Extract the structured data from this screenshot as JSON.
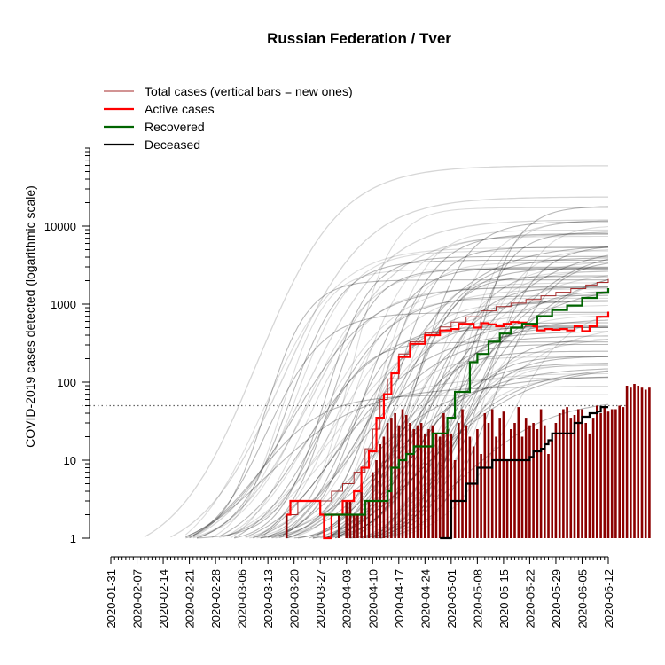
{
  "chart_data": {
    "type": "line",
    "title": "Russian Federation / Tver",
    "ylabel": "COVID-2019 cases detected (logarithmic scale)",
    "xlabel": "",
    "y_scale": "log",
    "ylim": [
      1,
      100000
    ],
    "xlim": [
      "2020-01-31",
      "2020-06-12"
    ],
    "grid": false,
    "legend_position": "top-left",
    "x_tick_labels": [
      "2020-01-31",
      "2020-02-07",
      "2020-02-14",
      "2020-02-21",
      "2020-02-28",
      "2020-03-06",
      "2020-03-13",
      "2020-03-20",
      "2020-03-27",
      "2020-04-03",
      "2020-04-10",
      "2020-04-17",
      "2020-04-24",
      "2020-05-01",
      "2020-05-08",
      "2020-05-15",
      "2020-05-22",
      "2020-05-29",
      "2020-06-05",
      "2020-06-12"
    ],
    "y_tick_labels": [
      {
        "value": 1,
        "label": "1"
      },
      {
        "value": 10,
        "label": "10"
      },
      {
        "value": 100,
        "label": "100"
      },
      {
        "value": 1000,
        "label": "1000"
      },
      {
        "value": 10000,
        "label": "10000"
      }
    ],
    "reference_line": {
      "y": 50,
      "style": "dotted"
    },
    "legend": [
      {
        "label": "Total cases (vertical bars = new ones)",
        "color": "#a52a2a",
        "width": 1
      },
      {
        "label": "Active cases",
        "color": "#ff0000",
        "width": 2
      },
      {
        "label": "Recovered",
        "color": "#006400",
        "width": 2
      },
      {
        "label": "Deceased",
        "color": "#000000",
        "width": 2
      }
    ],
    "series": [
      {
        "name": "Total cases (vertical bars = new ones)",
        "color": "#a52a2a",
        "points": [
          [
            "2020-03-18",
            2
          ],
          [
            "2020-03-20",
            2
          ],
          [
            "2020-03-21",
            3
          ],
          [
            "2020-03-26",
            3
          ],
          [
            "2020-03-29",
            3
          ],
          [
            "2020-03-30",
            4
          ],
          [
            "2020-04-02",
            5
          ],
          [
            "2020-04-05",
            7
          ],
          [
            "2020-04-08",
            14
          ],
          [
            "2020-04-10",
            25
          ],
          [
            "2020-04-12",
            60
          ],
          [
            "2020-04-14",
            110
          ],
          [
            "2020-04-17",
            230
          ],
          [
            "2020-04-20",
            330
          ],
          [
            "2020-04-24",
            430
          ],
          [
            "2020-04-28",
            510
          ],
          [
            "2020-05-01",
            590
          ],
          [
            "2020-05-05",
            690
          ],
          [
            "2020-05-09",
            820
          ],
          [
            "2020-05-13",
            930
          ],
          [
            "2020-05-17",
            1030
          ],
          [
            "2020-05-21",
            1150
          ],
          [
            "2020-05-25",
            1280
          ],
          [
            "2020-05-29",
            1420
          ],
          [
            "2020-06-02",
            1580
          ],
          [
            "2020-06-06",
            1760
          ],
          [
            "2020-06-09",
            1900
          ],
          [
            "2020-06-12",
            2100
          ]
        ]
      },
      {
        "name": "Active cases",
        "color": "#ff0000",
        "points": [
          [
            "2020-03-18",
            2
          ],
          [
            "2020-03-19",
            3
          ],
          [
            "2020-03-26",
            3
          ],
          [
            "2020-03-27",
            2
          ],
          [
            "2020-03-28",
            1
          ],
          [
            "2020-03-29",
            1
          ],
          [
            "2020-03-30",
            2
          ],
          [
            "2020-04-01",
            2
          ],
          [
            "2020-04-02",
            3
          ],
          [
            "2020-04-05",
            4
          ],
          [
            "2020-04-07",
            8
          ],
          [
            "2020-04-09",
            13
          ],
          [
            "2020-04-11",
            35
          ],
          [
            "2020-04-13",
            70
          ],
          [
            "2020-04-15",
            130
          ],
          [
            "2020-04-17",
            210
          ],
          [
            "2020-04-20",
            310
          ],
          [
            "2020-04-24",
            400
          ],
          [
            "2020-04-28",
            460
          ],
          [
            "2020-05-01",
            480
          ],
          [
            "2020-05-03",
            560
          ],
          [
            "2020-05-05",
            560
          ],
          [
            "2020-05-07",
            500
          ],
          [
            "2020-05-09",
            570
          ],
          [
            "2020-05-11",
            550
          ],
          [
            "2020-05-13",
            520
          ],
          [
            "2020-05-15",
            560
          ],
          [
            "2020-05-17",
            590
          ],
          [
            "2020-05-19",
            580
          ],
          [
            "2020-05-21",
            540
          ],
          [
            "2020-05-23",
            520
          ],
          [
            "2020-05-24",
            460
          ],
          [
            "2020-05-26",
            480
          ],
          [
            "2020-05-28",
            470
          ],
          [
            "2020-05-30",
            480
          ],
          [
            "2020-06-01",
            460
          ],
          [
            "2020-06-03",
            520
          ],
          [
            "2020-06-05",
            450
          ],
          [
            "2020-06-07",
            520
          ],
          [
            "2020-06-09",
            690
          ],
          [
            "2020-06-12",
            800
          ]
        ]
      },
      {
        "name": "Recovered",
        "color": "#006400",
        "points": [
          [
            "2020-03-28",
            2
          ],
          [
            "2020-04-07",
            2
          ],
          [
            "2020-04-08",
            3
          ],
          [
            "2020-04-13",
            3
          ],
          [
            "2020-04-14",
            4
          ],
          [
            "2020-04-15",
            8
          ],
          [
            "2020-04-17",
            10
          ],
          [
            "2020-04-19",
            12
          ],
          [
            "2020-04-21",
            15
          ],
          [
            "2020-04-25",
            15
          ],
          [
            "2020-04-26",
            22
          ],
          [
            "2020-04-29",
            22
          ],
          [
            "2020-04-30",
            35
          ],
          [
            "2020-05-02",
            75
          ],
          [
            "2020-05-05",
            75
          ],
          [
            "2020-05-06",
            180
          ],
          [
            "2020-05-08",
            230
          ],
          [
            "2020-05-11",
            330
          ],
          [
            "2020-05-14",
            420
          ],
          [
            "2020-05-17",
            500
          ],
          [
            "2020-05-20",
            560
          ],
          [
            "2020-05-24",
            700
          ],
          [
            "2020-05-28",
            840
          ],
          [
            "2020-06-01",
            960
          ],
          [
            "2020-06-05",
            1200
          ],
          [
            "2020-06-09",
            1400
          ],
          [
            "2020-06-12",
            1600
          ]
        ]
      },
      {
        "name": "Deceased",
        "color": "#000000",
        "points": [
          [
            "2020-04-28",
            1
          ],
          [
            "2020-04-30",
            1
          ],
          [
            "2020-05-01",
            3
          ],
          [
            "2020-05-04",
            3
          ],
          [
            "2020-05-05",
            5
          ],
          [
            "2020-05-06",
            5
          ],
          [
            "2020-05-08",
            8
          ],
          [
            "2020-05-11",
            8
          ],
          [
            "2020-05-12",
            10
          ],
          [
            "2020-05-21",
            10
          ],
          [
            "2020-05-22",
            11
          ],
          [
            "2020-05-23",
            13
          ],
          [
            "2020-05-25",
            14
          ],
          [
            "2020-05-26",
            16
          ],
          [
            "2020-05-27",
            18
          ],
          [
            "2020-05-28",
            22
          ],
          [
            "2020-06-01",
            22
          ],
          [
            "2020-06-03",
            30
          ],
          [
            "2020-06-05",
            36
          ],
          [
            "2020-06-07",
            40
          ],
          [
            "2020-06-09",
            42
          ],
          [
            "2020-06-10",
            48
          ],
          [
            "2020-06-12",
            48
          ]
        ]
      }
    ],
    "new_cases_bars": {
      "color": "#8b0000",
      "start_date": "2020-03-18",
      "values": [
        2,
        0,
        0,
        1,
        0,
        0,
        0,
        0,
        0,
        0,
        0,
        1,
        1,
        1,
        2,
        1,
        3,
        3,
        2,
        2,
        5,
        3,
        3,
        7,
        10,
        16,
        20,
        30,
        35,
        40,
        28,
        45,
        38,
        30,
        25,
        28,
        30,
        22,
        25,
        28,
        22,
        20,
        40,
        25,
        22,
        10,
        30,
        45,
        28,
        20,
        15,
        25,
        12,
        40,
        30,
        45,
        20,
        35,
        42,
        10,
        25,
        30,
        48,
        20,
        35,
        28,
        30,
        25,
        45,
        28,
        12,
        18,
        30,
        40,
        45,
        48,
        35,
        38,
        45,
        45,
        30,
        22,
        35,
        50,
        40,
        48,
        42,
        45,
        45,
        50,
        48,
        90,
        85,
        95,
        90,
        85,
        80,
        85
      ]
    },
    "comparison_curves": {
      "description": "",
      "count": 0
    }
  }
}
